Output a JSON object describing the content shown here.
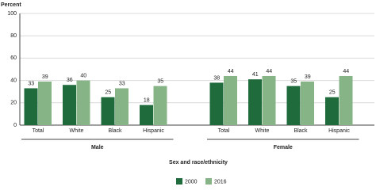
{
  "chart_data": {
    "type": "grouped_bar",
    "y_label": "Percent",
    "x_label": "Sex and race/ethnicity",
    "groups": [
      {
        "name": "Male",
        "categories": [
          "Total",
          "White",
          "Black",
          "Hispanic"
        ]
      },
      {
        "name": "Female",
        "categories": [
          "Total",
          "White",
          "Black",
          "Hispanic"
        ]
      }
    ],
    "series": [
      {
        "name": "2000",
        "color": "#1f6b3c",
        "values": [
          33,
          36,
          25,
          18,
          38,
          41,
          35,
          25
        ]
      },
      {
        "name": "2016",
        "color": "#86b486",
        "values": [
          39,
          40,
          33,
          35,
          44,
          44,
          39,
          44
        ]
      }
    ],
    "ylim": [
      0,
      100
    ],
    "yticks": [
      0,
      20,
      40,
      60,
      80,
      100
    ],
    "grid": true
  }
}
